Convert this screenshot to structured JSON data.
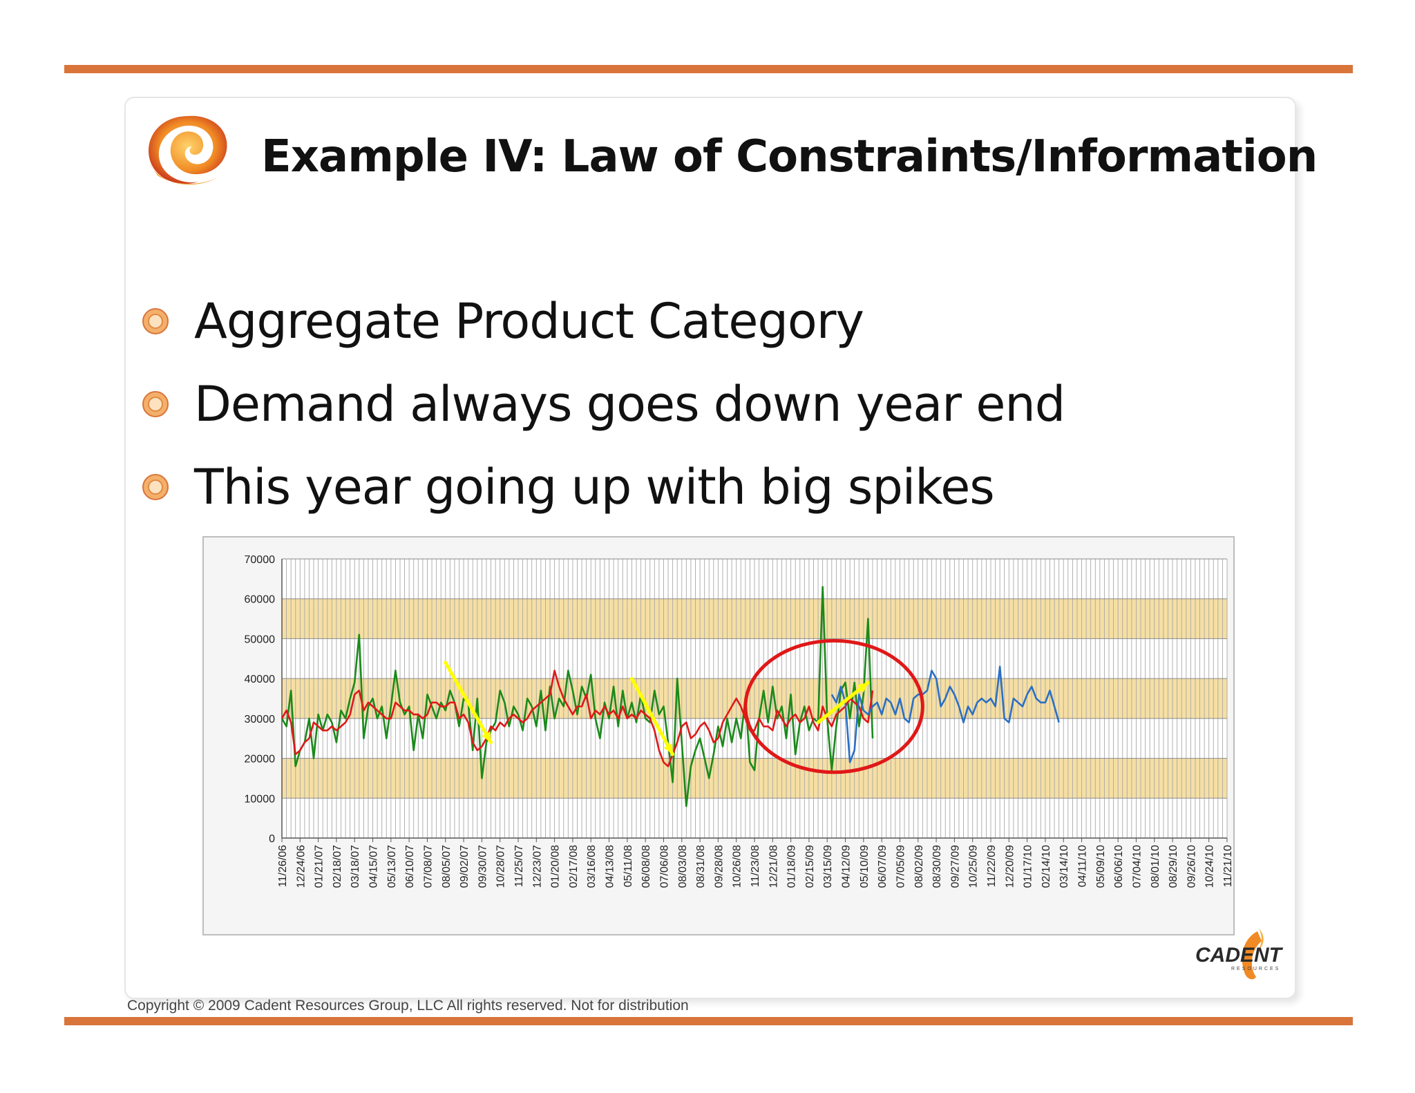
{
  "slide": {
    "title": "Example IV: Law of Constraints/Information",
    "bullets": [
      "Aggregate Product Category",
      "Demand always goes down year end",
      "This year going up with big spikes"
    ],
    "copyright": "Copyright © 2009 Cadent Resources Group, LLC All rights reserved. Not for distribution",
    "brand_logo": {
      "icon": "cadent-resources-logo",
      "wordmark": "CADENT",
      "subtext": "RESOURCES"
    },
    "title_logo": {
      "icon": "swirl-logo"
    }
  },
  "colors": {
    "rule": "#d9743a",
    "band": "#f6dfa3",
    "green": "#1a8a1a",
    "red": "#e01818",
    "blue": "#2a6fc4",
    "yellow": "#ffff00",
    "circle": "#e01818"
  },
  "chart_data": {
    "type": "line",
    "title": "",
    "xlabel": "",
    "ylabel": "",
    "ylim": [
      0,
      70000
    ],
    "y_ticks": [
      0,
      10000,
      20000,
      30000,
      40000,
      50000,
      60000,
      70000
    ],
    "grid": "vertical lines at every week; alternating horizontal bands",
    "legend": "none",
    "bands": [
      [
        10000,
        20000
      ],
      [
        30000,
        40000
      ],
      [
        50000,
        60000
      ]
    ],
    "x_tick_labels": [
      "11/26/06",
      "12/24/06",
      "01/21/07",
      "02/18/07",
      "03/18/07",
      "04/15/07",
      "05/13/07",
      "06/10/07",
      "07/08/07",
      "08/05/07",
      "09/02/07",
      "09/30/07",
      "10/28/07",
      "11/25/07",
      "12/23/07",
      "01/20/08",
      "02/17/08",
      "03/16/08",
      "04/13/08",
      "05/11/08",
      "06/08/08",
      "07/06/08",
      "08/03/08",
      "08/31/08",
      "09/28/08",
      "10/26/08",
      "11/23/08",
      "12/21/08",
      "01/18/09",
      "02/15/09",
      "03/15/09",
      "04/12/09",
      "05/10/09",
      "06/07/09",
      "07/05/09",
      "08/02/09",
      "08/30/09",
      "09/27/09",
      "10/25/09",
      "11/22/09",
      "12/20/09",
      "01/17/10",
      "02/14/10",
      "03/14/10",
      "04/11/10",
      "05/09/10",
      "06/06/10",
      "07/04/10",
      "08/01/10",
      "08/29/10",
      "09/26/10",
      "10/24/10",
      "11/21/10"
    ],
    "series": [
      {
        "values": [
          30000,
          28000,
          37000,
          18000,
          22000,
          24000,
          30000,
          20000,
          31000,
          27000,
          31000,
          29000,
          24000,
          32000,
          30000,
          35000,
          39000,
          51000,
          25000,
          33000,
          35000,
          30000,
          33000,
          25000,
          33000,
          42000,
          34000,
          31000,
          33000,
          22000,
          31000,
          25000,
          36000,
          33000,
          30000,
          34000,
          32000,
          37000,
          34000,
          28000,
          35000,
          34000,
          22000,
          35000,
          15000,
          24000,
          27000,
          29000,
          37000,
          34000,
          28000,
          33000,
          31000,
          27000,
          35000,
          33000,
          28000,
          37000,
          27000,
          38000,
          30000,
          35000,
          33000,
          42000,
          37000,
          31000,
          38000,
          35000,
          41000,
          30000,
          25000,
          34000,
          30000,
          38000,
          28000,
          37000,
          30000,
          34000,
          29000,
          36000,
          30000,
          29000,
          37000,
          31000,
          33000,
          24000,
          14000,
          40000,
          24000,
          8000,
          18000,
          22000,
          25000,
          20000,
          15000,
          21000,
          28000,
          23000,
          30000,
          24000,
          30000,
          25000,
          35000,
          19000,
          17000,
          30000,
          37000,
          29000,
          38000,
          30000,
          33000,
          25000,
          36000,
          21000,
          29000,
          33000,
          27000,
          30000,
          29000,
          63000,
          30000,
          17000,
          28000,
          37000,
          39000,
          30000,
          39000,
          28000,
          36000,
          55000,
          25000
        ]
      },
      {
        "values": [
          30000,
          32000,
          29000,
          21000,
          22000,
          24000,
          25000,
          29000,
          28000,
          27000,
          27000,
          28000,
          27000,
          28000,
          29000,
          31000,
          36000,
          37000,
          32000,
          34000,
          33000,
          32000,
          31000,
          30000,
          30000,
          34000,
          33000,
          32000,
          32000,
          31000,
          31000,
          30000,
          31000,
          34000,
          34000,
          33000,
          33000,
          34000,
          34000,
          30000,
          31000,
          29000,
          24000,
          22000,
          23000,
          25000,
          28000,
          27000,
          29000,
          28000,
          30000,
          31000,
          30000,
          29000,
          30000,
          32000,
          33000,
          34000,
          35000,
          36000,
          42000,
          38000,
          35000,
          33000,
          31000,
          33000,
          33000,
          36000,
          30000,
          32000,
          31000,
          33000,
          31000,
          32000,
          30000,
          33000,
          30000,
          31000,
          30000,
          32000,
          31000,
          30000,
          27000,
          22000,
          19000,
          18000,
          21000,
          24000,
          28000,
          29000,
          25000,
          26000,
          28000,
          29000,
          27000,
          24000,
          25000,
          29000,
          31000,
          33000,
          35000,
          33000,
          30000,
          27000,
          27000,
          30000,
          28000,
          28000,
          27000,
          32000,
          30000,
          28000,
          30000,
          31000,
          29000,
          30000,
          33000,
          29000,
          27000,
          33000,
          30000,
          28000,
          31000,
          32000,
          33000,
          35000,
          34000,
          33000,
          30000,
          29000,
          37000
        ]
      },
      {
        "values": [
          36000,
          34000,
          38000,
          34000,
          19000,
          22000,
          36000,
          32000,
          31000,
          33000,
          34000,
          31000,
          35000,
          34000,
          31000,
          35000,
          30000,
          29000,
          35000,
          36000,
          36000,
          37000,
          42000,
          40000,
          33000,
          35000,
          38000,
          36000,
          33000,
          29000,
          33000,
          31000,
          34000,
          35000,
          34000,
          35000,
          33000,
          43000,
          30000,
          29000,
          35000,
          34000,
          33000,
          36000,
          38000,
          35000,
          34000,
          34000,
          37000,
          33000,
          29000
        ]
      }
    ]
  }
}
